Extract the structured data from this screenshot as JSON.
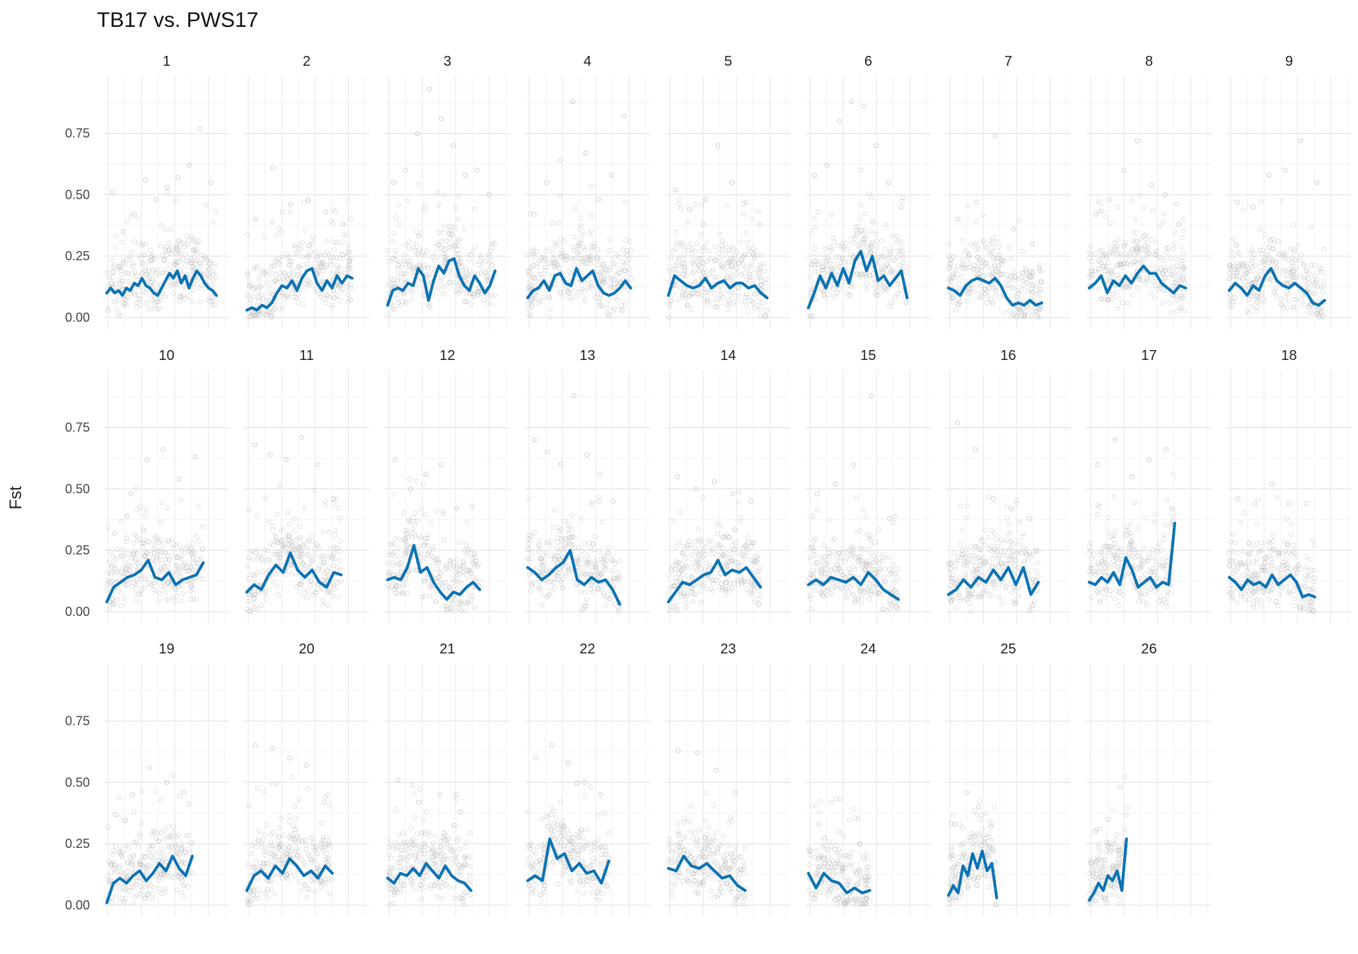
{
  "chart_data": {
    "type": "scatter",
    "title": "TB17 vs.  PWS17",
    "xlabel": "",
    "ylabel": "Fst",
    "ylim": [
      0,
      0.95
    ],
    "y_ticks": [
      "0.00",
      "0.25",
      "0.50",
      "0.75"
    ],
    "y_tick_values": [
      0,
      0.25,
      0.5,
      0.75
    ],
    "grid": true,
    "legend": "none",
    "point_color": "#bdbdbd",
    "line_color": "#0a72b4",
    "panels": [
      {
        "label": "1",
        "len": 1.0,
        "line": [
          0.1,
          0.12,
          0.1,
          0.11,
          0.09,
          0.12,
          0.11,
          0.14,
          0.13,
          0.16,
          0.13,
          0.12,
          0.1,
          0.09,
          0.12,
          0.15,
          0.18,
          0.16,
          0.19,
          0.14,
          0.17,
          0.12,
          0.16,
          0.19,
          0.17,
          0.14,
          0.12,
          0.11,
          0.09
        ],
        "peaks": [
          0.51,
          0.35,
          0.42,
          0.56,
          0.48,
          0.53,
          0.57,
          0.62,
          0.77,
          0.55
        ]
      },
      {
        "label": "2",
        "len": 0.96,
        "line": [
          0.03,
          0.04,
          0.03,
          0.05,
          0.04,
          0.06,
          0.1,
          0.13,
          0.12,
          0.15,
          0.11,
          0.16,
          0.19,
          0.2,
          0.14,
          0.11,
          0.15,
          0.12,
          0.17,
          0.14,
          0.17,
          0.16
        ],
        "peaks": [
          0.4,
          0.61,
          0.46,
          0.48,
          0.43,
          0.38
        ]
      },
      {
        "label": "3",
        "len": 0.98,
        "line": [
          0.05,
          0.11,
          0.12,
          0.11,
          0.14,
          0.13,
          0.2,
          0.17,
          0.07,
          0.15,
          0.21,
          0.18,
          0.23,
          0.24,
          0.17,
          0.13,
          0.11,
          0.17,
          0.14,
          0.1,
          0.13,
          0.19
        ],
        "peaks": [
          0.55,
          0.6,
          0.75,
          0.93,
          0.81,
          0.7,
          0.58,
          0.6,
          0.5
        ]
      },
      {
        "label": "4",
        "len": 0.94,
        "line": [
          0.08,
          0.11,
          0.12,
          0.15,
          0.11,
          0.17,
          0.18,
          0.14,
          0.13,
          0.2,
          0.15,
          0.17,
          0.19,
          0.13,
          0.1,
          0.09,
          0.1,
          0.12,
          0.15,
          0.12
        ],
        "peaks": [
          0.42,
          0.55,
          0.64,
          0.88,
          0.67,
          0.48,
          0.58,
          0.82
        ]
      },
      {
        "label": "5",
        "len": 0.9,
        "line": [
          0.09,
          0.17,
          0.15,
          0.13,
          0.12,
          0.13,
          0.16,
          0.12,
          0.14,
          0.15,
          0.12,
          0.14,
          0.14,
          0.12,
          0.13,
          0.1,
          0.08
        ],
        "peaks": [
          0.52,
          0.44,
          0.38,
          0.7,
          0.55,
          0.47,
          0.38
        ]
      },
      {
        "label": "6",
        "len": 0.9,
        "line": [
          0.04,
          0.1,
          0.17,
          0.12,
          0.18,
          0.13,
          0.2,
          0.14,
          0.23,
          0.27,
          0.19,
          0.25,
          0.15,
          0.17,
          0.13,
          0.16,
          0.19,
          0.08
        ],
        "peaks": [
          0.58,
          0.62,
          0.8,
          0.88,
          0.86,
          0.7,
          0.55,
          0.45
        ]
      },
      {
        "label": "7",
        "len": 0.85,
        "line": [
          0.12,
          0.11,
          0.09,
          0.13,
          0.15,
          0.16,
          0.15,
          0.14,
          0.16,
          0.13,
          0.08,
          0.05,
          0.06,
          0.05,
          0.07,
          0.05,
          0.06
        ],
        "peaks": [
          0.4,
          0.47,
          0.74,
          0.36,
          0.3
        ]
      },
      {
        "label": "8",
        "len": 0.88,
        "line": [
          0.12,
          0.14,
          0.17,
          0.1,
          0.15,
          0.13,
          0.17,
          0.14,
          0.18,
          0.21,
          0.18,
          0.18,
          0.14,
          0.12,
          0.1,
          0.13,
          0.12
        ],
        "peaks": [
          0.42,
          0.48,
          0.6,
          0.72,
          0.54,
          0.5,
          0.38
        ]
      },
      {
        "label": "9",
        "len": 0.87,
        "line": [
          0.11,
          0.14,
          0.12,
          0.09,
          0.13,
          0.11,
          0.17,
          0.2,
          0.15,
          0.13,
          0.12,
          0.14,
          0.12,
          0.1,
          0.06,
          0.05,
          0.07
        ],
        "peaks": [
          0.47,
          0.45,
          0.58,
          0.6,
          0.72,
          0.55
        ]
      },
      {
        "label": "10",
        "len": 0.88,
        "line": [
          0.04,
          0.1,
          0.12,
          0.14,
          0.15,
          0.17,
          0.21,
          0.14,
          0.13,
          0.16,
          0.11,
          0.13,
          0.14,
          0.15,
          0.2
        ],
        "peaks": [
          0.32,
          0.48,
          0.62,
          0.66,
          0.54,
          0.63
        ]
      },
      {
        "label": "11",
        "len": 0.86,
        "line": [
          0.08,
          0.11,
          0.09,
          0.15,
          0.19,
          0.16,
          0.24,
          0.17,
          0.14,
          0.17,
          0.12,
          0.1,
          0.16,
          0.15
        ],
        "peaks": [
          0.68,
          0.64,
          0.62,
          0.71,
          0.6,
          0.46
        ]
      },
      {
        "label": "12",
        "len": 0.84,
        "line": [
          0.13,
          0.14,
          0.13,
          0.18,
          0.27,
          0.16,
          0.18,
          0.12,
          0.08,
          0.05,
          0.08,
          0.07,
          0.1,
          0.12,
          0.09
        ],
        "peaks": [
          0.62,
          0.5,
          0.56,
          0.6,
          0.42,
          0.43
        ]
      },
      {
        "label": "13",
        "len": 0.84,
        "line": [
          0.18,
          0.16,
          0.13,
          0.15,
          0.18,
          0.2,
          0.25,
          0.13,
          0.11,
          0.14,
          0.12,
          0.13,
          0.09,
          0.03
        ],
        "peaks": [
          0.7,
          0.65,
          0.6,
          0.88,
          0.64,
          0.56,
          0.45
        ]
      },
      {
        "label": "14",
        "len": 0.84,
        "line": [
          0.04,
          0.08,
          0.12,
          0.11,
          0.13,
          0.15,
          0.16,
          0.21,
          0.15,
          0.17,
          0.16,
          0.18,
          0.14,
          0.1
        ],
        "peaks": [
          0.55,
          0.5,
          0.53,
          0.48,
          0.45
        ]
      },
      {
        "label": "15",
        "len": 0.82,
        "line": [
          0.11,
          0.13,
          0.11,
          0.14,
          0.13,
          0.12,
          0.14,
          0.11,
          0.16,
          0.13,
          0.09,
          0.07,
          0.05
        ],
        "peaks": [
          0.48,
          0.52,
          0.6,
          0.88,
          0.38
        ]
      },
      {
        "label": "16",
        "len": 0.82,
        "line": [
          0.07,
          0.09,
          0.13,
          0.1,
          0.14,
          0.12,
          0.17,
          0.13,
          0.18,
          0.11,
          0.18,
          0.07,
          0.12
        ],
        "peaks": [
          0.77,
          0.66,
          0.46,
          0.42,
          0.38
        ]
      },
      {
        "label": "17",
        "len": 0.78,
        "line": [
          0.12,
          0.11,
          0.14,
          0.12,
          0.16,
          0.11,
          0.22,
          0.17,
          0.1,
          0.12,
          0.14,
          0.1,
          0.12,
          0.11,
          0.36
        ],
        "peaks": [
          0.6,
          0.7,
          0.55,
          0.62,
          0.66
        ]
      },
      {
        "label": "18",
        "len": 0.78,
        "line": [
          0.14,
          0.12,
          0.09,
          0.13,
          0.11,
          0.12,
          0.1,
          0.15,
          0.11,
          0.13,
          0.15,
          0.12,
          0.06,
          0.07,
          0.06
        ],
        "peaks": [
          0.46,
          0.44,
          0.52,
          0.44,
          0.44
        ]
      },
      {
        "label": "19",
        "len": 0.78,
        "line": [
          0.01,
          0.09,
          0.11,
          0.09,
          0.12,
          0.14,
          0.1,
          0.13,
          0.17,
          0.14,
          0.2,
          0.15,
          0.12,
          0.2
        ],
        "peaks": [
          0.37,
          0.45,
          0.56,
          0.5,
          0.46
        ]
      },
      {
        "label": "20",
        "len": 0.78,
        "line": [
          0.06,
          0.12,
          0.14,
          0.11,
          0.16,
          0.13,
          0.19,
          0.16,
          0.12,
          0.14,
          0.11,
          0.16,
          0.13
        ],
        "peaks": [
          0.65,
          0.64,
          0.6,
          0.57,
          0.42
        ]
      },
      {
        "label": "21",
        "len": 0.76,
        "line": [
          0.11,
          0.09,
          0.13,
          0.12,
          0.15,
          0.12,
          0.17,
          0.14,
          0.11,
          0.16,
          0.12,
          0.1,
          0.09,
          0.06
        ],
        "peaks": [
          0.51,
          0.42,
          0.45,
          0.38
        ]
      },
      {
        "label": "22",
        "len": 0.74,
        "line": [
          0.1,
          0.12,
          0.1,
          0.27,
          0.19,
          0.21,
          0.14,
          0.17,
          0.13,
          0.14,
          0.09,
          0.18
        ],
        "peaks": [
          0.6,
          0.65,
          0.58,
          0.5,
          0.45
        ]
      },
      {
        "label": "23",
        "len": 0.7,
        "line": [
          0.15,
          0.14,
          0.2,
          0.16,
          0.15,
          0.17,
          0.14,
          0.11,
          0.12,
          0.08,
          0.06
        ],
        "peaks": [
          0.63,
          0.62,
          0.55,
          0.46
        ]
      },
      {
        "label": "24",
        "len": 0.56,
        "line": [
          0.13,
          0.07,
          0.13,
          0.1,
          0.09,
          0.05,
          0.07,
          0.05,
          0.06
        ],
        "peaks": [
          0.33,
          0.3,
          0.25
        ]
      },
      {
        "label": "25",
        "len": 0.44,
        "line": [
          0.04,
          0.08,
          0.05,
          0.16,
          0.12,
          0.21,
          0.15,
          0.22,
          0.14,
          0.17,
          0.03
        ],
        "peaks": [
          0.33,
          0.46,
          0.4,
          0.32
        ]
      },
      {
        "label": "26",
        "len": 0.34,
        "line": [
          0.02,
          0.05,
          0.09,
          0.06,
          0.12,
          0.1,
          0.14,
          0.06,
          0.27
        ],
        "peaks": [
          0.3,
          0.35,
          0.48
        ]
      }
    ]
  }
}
